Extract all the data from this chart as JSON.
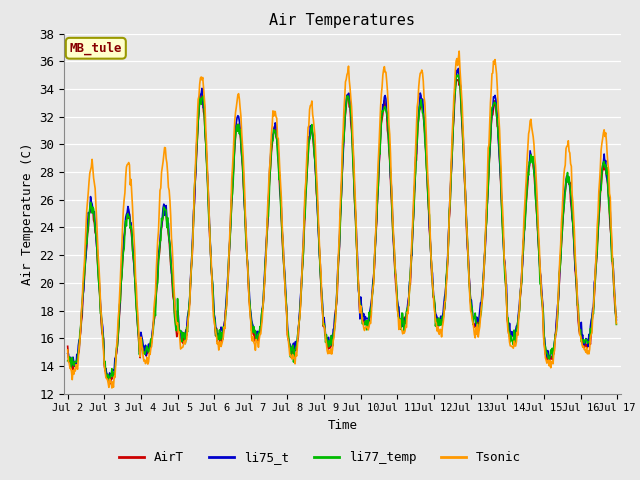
{
  "title": "Air Temperatures",
  "ylabel": "Air Temperature (C)",
  "xlabel": "Time",
  "ylim": [
    12,
    38
  ],
  "yticks": [
    12,
    14,
    16,
    18,
    20,
    22,
    24,
    26,
    28,
    30,
    32,
    34,
    36,
    38
  ],
  "xtick_labels": [
    "Jul 2",
    "Jul 3",
    "Jul 4",
    "Jul 5",
    "Jul 6",
    "Jul 7",
    "Jul 8",
    "Jul 9",
    "Jul 10",
    "Jul 11",
    "Jul 12",
    "Jul 13",
    "Jul 14",
    "Jul 15",
    "Jul 16",
    "Jul 17"
  ],
  "series_colors": {
    "AirT": "#cc0000",
    "li75_t": "#0000cc",
    "li77_temp": "#00bb00",
    "Tsonic": "#ff9900"
  },
  "series_linewidths": {
    "AirT": 1.2,
    "li75_t": 1.2,
    "li77_temp": 1.2,
    "Tsonic": 1.2
  },
  "background_color": "#e8e8e8",
  "plot_bg_color": "#e8e8e8",
  "grid_color": "#ffffff",
  "annotation_text": "MB_tule",
  "annotation_bg": "#ffffcc",
  "annotation_border": "#999900",
  "annotation_text_color": "#880000",
  "font_family": "monospace",
  "fig_width": 6.4,
  "fig_height": 4.8,
  "dpi": 100
}
